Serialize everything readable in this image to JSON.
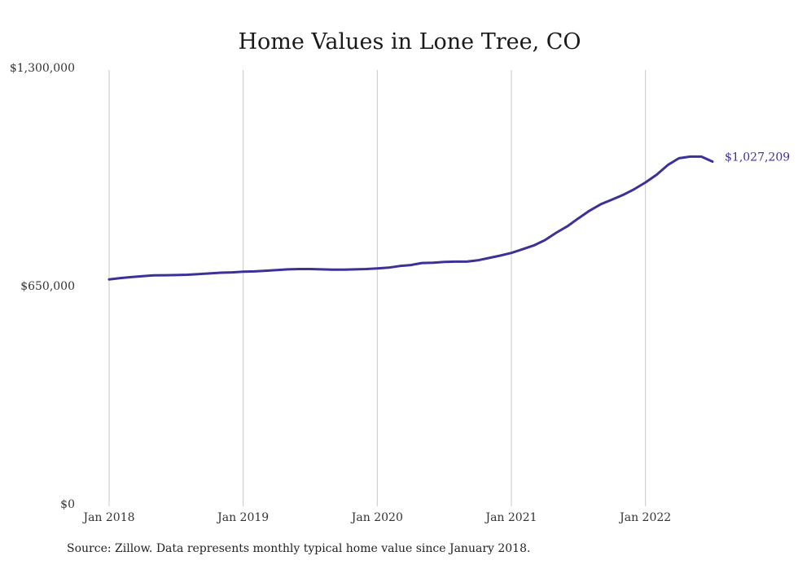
{
  "chart_data": {
    "type": "line",
    "title": "Home Values in Lone Tree, CO",
    "xlabel": "",
    "ylabel": "",
    "ylim": [
      0,
      1300000
    ],
    "xlim": [
      "2018-01",
      "2022-07"
    ],
    "y_tick_labels": [
      "$0",
      "$650,000",
      "$1,300,000"
    ],
    "y_tick_values": [
      0,
      650000,
      1300000
    ],
    "x_tick_labels": [
      "Jan 2018",
      "Jan 2019",
      "Jan 2020",
      "Jan 2021",
      "Jan 2022"
    ],
    "x_tick_values": [
      "2018-01",
      "2019-01",
      "2020-01",
      "2021-01",
      "2022-01"
    ],
    "grid": "vertical",
    "legend": "none",
    "line_color": "#3b3196",
    "grid_color": "#c8c8c8",
    "end_label": "$1,027,209",
    "series": [
      {
        "x": [
          "2018-01",
          "2018-02",
          "2018-03",
          "2018-04",
          "2018-05",
          "2018-06",
          "2018-07",
          "2018-08",
          "2018-09",
          "2018-10",
          "2018-11",
          "2018-12",
          "2019-01",
          "2019-02",
          "2019-03",
          "2019-04",
          "2019-05",
          "2019-06",
          "2019-07",
          "2019-08",
          "2019-09",
          "2019-10",
          "2019-11",
          "2019-12",
          "2020-01",
          "2020-02",
          "2020-03",
          "2020-04",
          "2020-05",
          "2020-06",
          "2020-07",
          "2020-08",
          "2020-09",
          "2020-10",
          "2020-11",
          "2020-12",
          "2021-01",
          "2021-02",
          "2021-03",
          "2021-04",
          "2021-05",
          "2021-06",
          "2021-07",
          "2021-08",
          "2021-09",
          "2021-10",
          "2021-11",
          "2021-12",
          "2022-01",
          "2022-02",
          "2022-03",
          "2022-04",
          "2022-05",
          "2022-06",
          "2022-07"
        ],
        "values": [
          676000,
          680000,
          683000,
          686000,
          688000,
          688500,
          689000,
          690000,
          692000,
          694000,
          696000,
          697000,
          699000,
          700000,
          702000,
          704000,
          706000,
          707000,
          707000,
          706000,
          705000,
          705000,
          706000,
          707000,
          709000,
          711000,
          716000,
          719000,
          725000,
          726000,
          728000,
          729000,
          729000,
          733000,
          740000,
          747000,
          755000,
          766000,
          777000,
          793000,
          815000,
          834000,
          858000,
          881000,
          900000,
          914000,
          928000,
          945000,
          965000,
          988000,
          1017000,
          1037000,
          1042000,
          1042000,
          1027209
        ]
      }
    ]
  },
  "source_text": "Source: Zillow. Data represents monthly typical home value since January 2018."
}
